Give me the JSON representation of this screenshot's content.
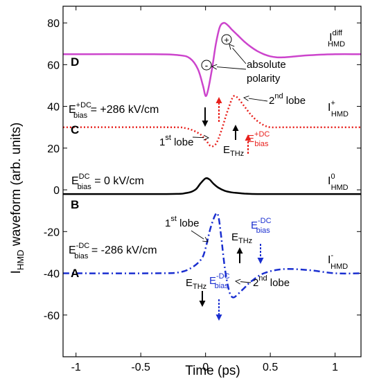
{
  "chart_data": {
    "type": "line",
    "xlabel": "Time (ps)",
    "ylabel_main": "I",
    "ylabel_sub": "HMD",
    "ylabel_rest": " waveform (arb. units)",
    "xlim": [
      -1.1,
      1.2
    ],
    "ylim": [
      -80,
      88
    ],
    "xticks": [
      -1,
      -0.5,
      0,
      0.5,
      1
    ],
    "xtick_labels": [
      "-1",
      "-0.5",
      "0",
      "0.5",
      "1"
    ],
    "yticks": [
      -60,
      -40,
      -20,
      0,
      20,
      40,
      60,
      80
    ],
    "ytick_labels": [
      "-60",
      "-40",
      "-20",
      "0",
      "20",
      "40",
      "60",
      "80"
    ],
    "colors": {
      "D": "#cc44cc",
      "C": "#e8201c",
      "B": "#000000",
      "A": "#1a2fd0"
    },
    "series": [
      {
        "name": "I_HMD^diff",
        "panel": "D",
        "x": [
          -1.1,
          -0.4,
          -0.2,
          -0.12,
          -0.06,
          -0.02,
          0.0,
          0.02,
          0.05,
          0.08,
          0.11,
          0.14,
          0.17,
          0.2,
          0.25,
          0.3,
          0.35,
          0.4,
          0.45,
          0.5,
          0.55,
          0.6,
          0.7,
          0.8,
          1.0,
          1.2
        ],
        "y": [
          65,
          65,
          64.5,
          63,
          58,
          50,
          45,
          48,
          58,
          70,
          78,
          80,
          79,
          77,
          74,
          71,
          68.5,
          66.5,
          65,
          64,
          63.5,
          63.5,
          64,
          64.5,
          65,
          65
        ]
      },
      {
        "name": "I_HMD^+",
        "panel": "C",
        "x": [
          -1.1,
          -0.3,
          -0.15,
          -0.05,
          0.0,
          0.04,
          0.08,
          0.12,
          0.16,
          0.2,
          0.22,
          0.25,
          0.3,
          0.35,
          0.4,
          0.45,
          0.5,
          0.6,
          0.8,
          1.2
        ],
        "y": [
          30,
          30,
          29.5,
          27,
          24,
          21,
          22,
          28,
          36,
          43,
          45,
          44,
          40,
          36,
          33,
          31,
          30,
          30,
          30,
          30
        ]
      },
      {
        "name": "I_HMD^0",
        "panel": "B",
        "x": [
          -1.1,
          -0.3,
          -0.15,
          -0.08,
          -0.04,
          0.0,
          0.03,
          0.06,
          0.1,
          0.15,
          0.2,
          0.25,
          0.3,
          0.4,
          0.6,
          1.2
        ],
        "y": [
          -2,
          -2,
          -1.5,
          0,
          3,
          5.5,
          5,
          3,
          1,
          -0.5,
          -1.2,
          -1.5,
          -1.8,
          -2,
          -2,
          -2
        ]
      },
      {
        "name": "I_HMD^-",
        "panel": "A",
        "x": [
          -1.1,
          -0.4,
          -0.2,
          -0.1,
          -0.03,
          0.0,
          0.04,
          0.08,
          0.1,
          0.12,
          0.15,
          0.18,
          0.2,
          0.22,
          0.25,
          0.3,
          0.35,
          0.45,
          0.6,
          0.8,
          1.0,
          1.2
        ],
        "y": [
          -40,
          -40,
          -39.5,
          -37,
          -33,
          -28,
          -18,
          -11.5,
          -13,
          -22,
          -38,
          -48,
          -51,
          -51.5,
          -50,
          -47,
          -44,
          -40,
          -38,
          -38.5,
          -40,
          -40
        ]
      }
    ],
    "annotations": {
      "label_D": "D",
      "label_C": "C",
      "label_B": "B",
      "label_A": "A",
      "diff_I": "I",
      "diff_sup": "diff",
      "diff_sub": "HMD",
      "plus_I": "I",
      "plus_sup": "+",
      "plus_sub": "HMD",
      "zero_I": "I",
      "zero_sup": "0",
      "zero_sub": "HMD",
      "minus_I": "I",
      "minus_sup": "-",
      "minus_sub": "HMD",
      "ebias_E": "E",
      "ebias_sub": "bias",
      "ebias_plus_sup": "+DC",
      "ebias_plus_val": " = +286 kV/cm",
      "ebias_zero_sup": "DC",
      "ebias_zero_val": " = 0 kV/cm",
      "ebias_minus_sup": "-DC",
      "ebias_minus_val": " = -286 kV/cm",
      "ethz_E": "E",
      "ethz_sub": "THz",
      "lobe1_num": "1",
      "lobe1_sup": "st",
      "lobe1_text": " lobe",
      "lobe2_num": "2",
      "lobe2_sup": "nd",
      "lobe2_text": " lobe",
      "abs_line1": "absolute",
      "abs_line2": "polarity",
      "plus_sign": "+",
      "minus_sign": "-"
    }
  }
}
